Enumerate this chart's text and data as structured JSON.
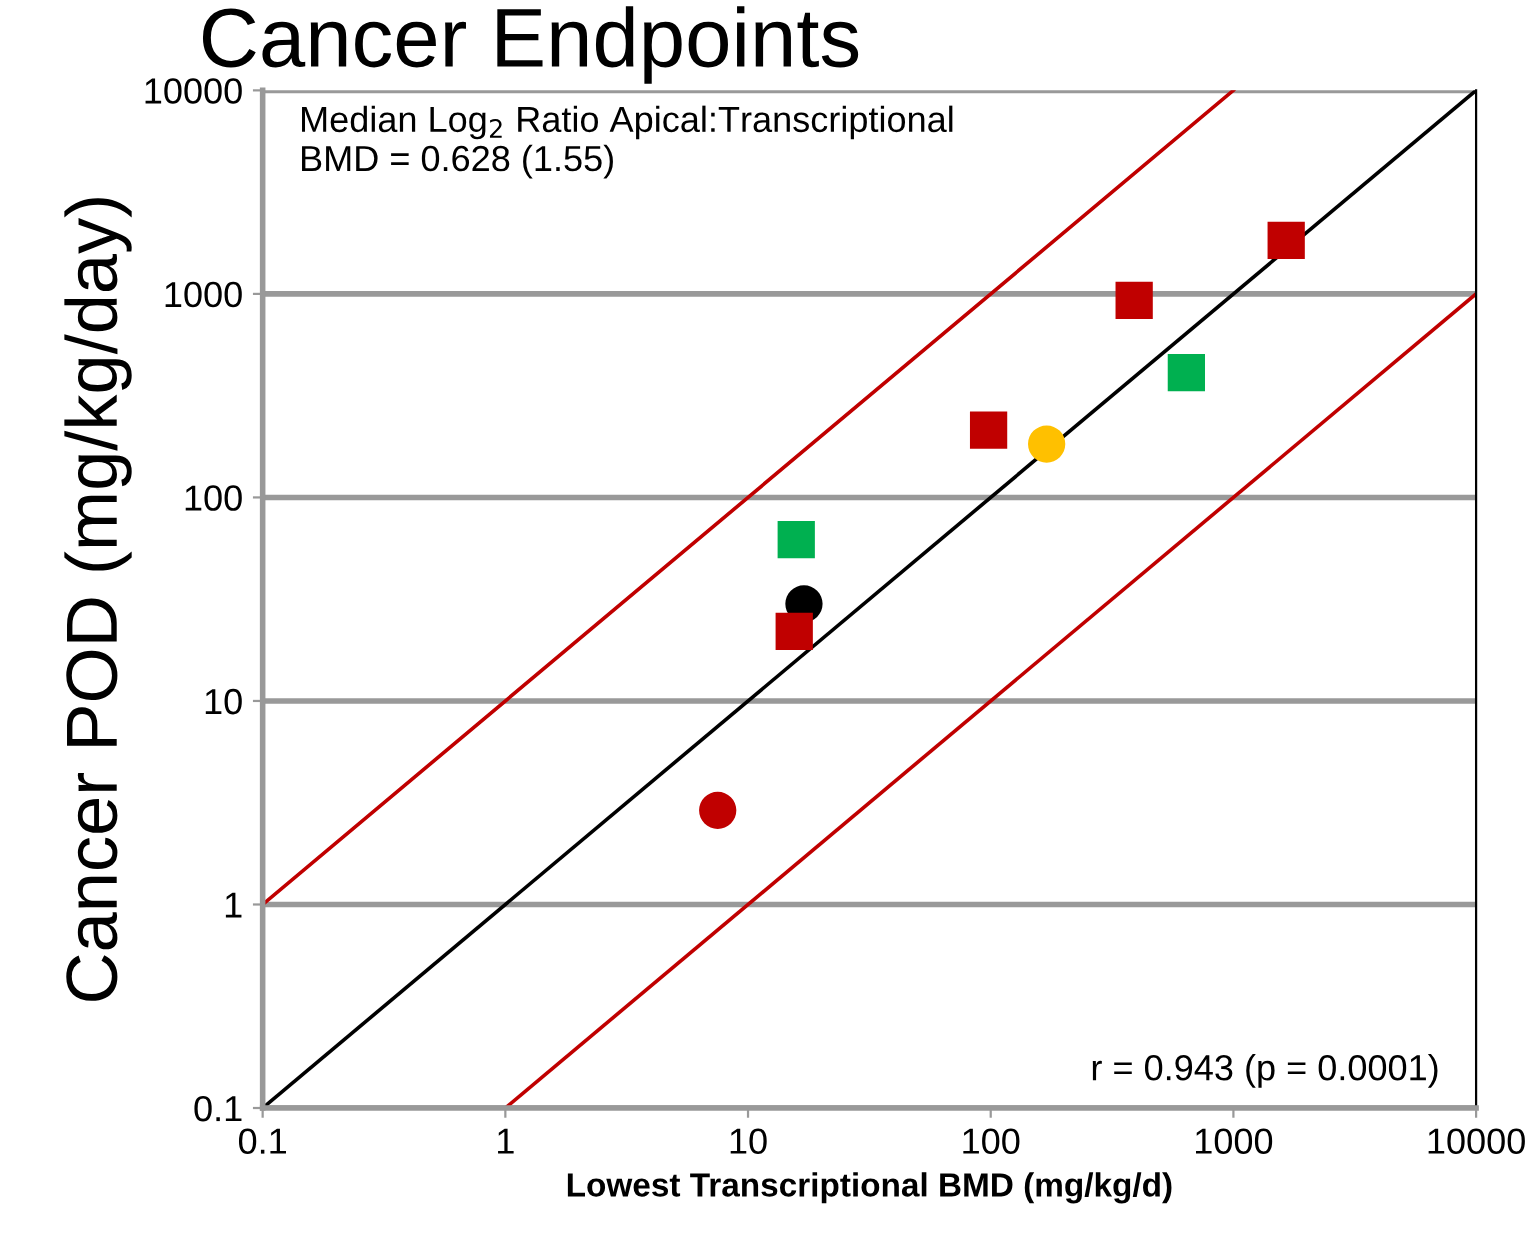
{
  "chart_data": {
    "type": "scatter",
    "title": "Cancer Endpoints",
    "xlabel": "Lowest Transcriptional BMD (mg/kg/d)",
    "ylabel": "Cancer POD (mg/kg/day)",
    "log": "xy",
    "xlim": [
      0.1,
      10000
    ],
    "ylim": [
      0.1,
      10000
    ],
    "xticks": [
      0.1,
      1,
      10,
      100,
      1000,
      10000
    ],
    "yticks": [
      0.1,
      1,
      10,
      100,
      1000,
      10000
    ],
    "grid": "y",
    "legend": false,
    "annotations": [
      "Median Log$_{2}$ Ratio Apical:Transcriptional\nBMD = 0.628 (1.55)",
      "r = 0.943 (p = 0.0001)"
    ],
    "series": [
      {
        "marker": "circle",
        "x": [
          7.5,
          17,
          170
        ],
        "values": [
          2.9,
          30,
          183
        ],
        "colors": [
          "#c00000",
          "#000000",
          "#ffc000"
        ]
      },
      {
        "marker": "square",
        "x": [
          15.5,
          98,
          390,
          1650,
          15.8,
          640
        ],
        "values": [
          22,
          214,
          930,
          1830,
          62,
          410
        ],
        "colors": [
          "#c00000",
          "#c00000",
          "#c00000",
          "#c00000",
          "#00b050",
          "#00b050"
        ]
      },
      {
        "type": "line",
        "x": [
          0.1,
          10000
        ],
        "values": [
          0.1,
          10000
        ],
        "color": "#000000"
      },
      {
        "type": "line",
        "x": [
          0.1,
          1000
        ],
        "values": [
          1,
          10000
        ],
        "color": "#c00000"
      },
      {
        "type": "line",
        "x": [
          1,
          10000
        ],
        "values": [
          0.1,
          1000
        ],
        "color": "#c00000"
      }
    ]
  }
}
